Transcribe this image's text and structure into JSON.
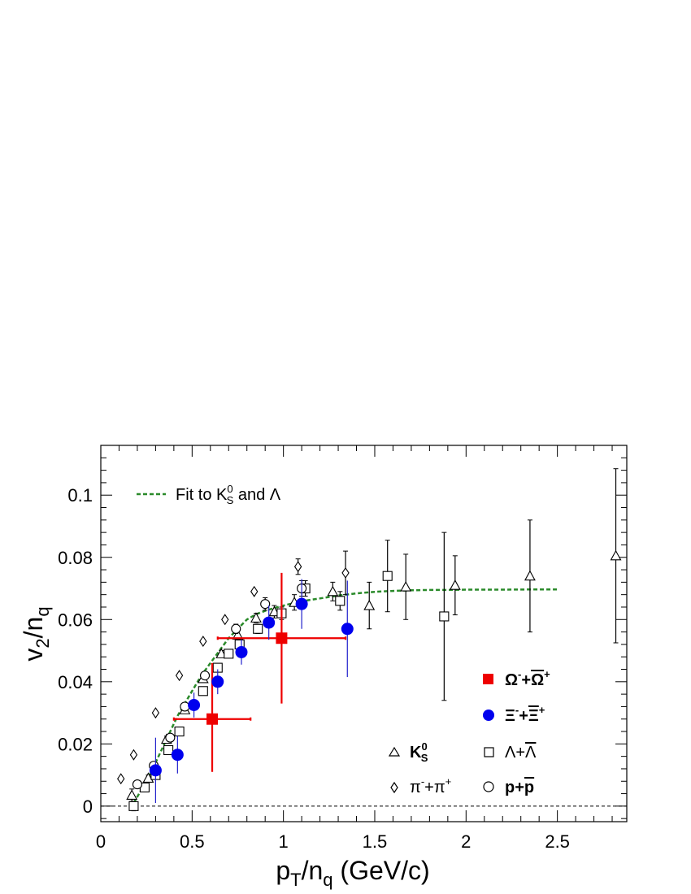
{
  "chart_data": {
    "type": "scatter",
    "xlabel": "p_T/n_q (GeV/c)",
    "ylabel": "v_2/n_q",
    "xlim": [
      0,
      2.88
    ],
    "ylim": [
      -0.005,
      0.116
    ],
    "grid": false,
    "legend_placement": "top-left fit; bottom-right markers",
    "x_ticks": [
      "0",
      "0.5",
      "1",
      "1.5",
      "2",
      "2.5"
    ],
    "y_ticks": [
      "0",
      "0.02",
      "0.04",
      "0.06",
      "0.08",
      "0.1"
    ],
    "zero_line": true,
    "colors": {
      "fit": "#2a8a2a",
      "omega": "#ee0000",
      "xi": "#0000ee",
      "other": "#000000",
      "xi_errors": "#2222cc"
    },
    "fit": {
      "label": "Fit to K_S^0 and Λ",
      "x": [
        0.18,
        0.22,
        0.26,
        0.3,
        0.34,
        0.38,
        0.42,
        0.46,
        0.5,
        0.55,
        0.6,
        0.65,
        0.7,
        0.75,
        0.8,
        0.85,
        0.9,
        0.95,
        1.0,
        1.1,
        1.2,
        1.3,
        1.4,
        1.5,
        1.6,
        1.7,
        1.8,
        1.9,
        2.0,
        2.2,
        2.4,
        2.5
      ],
      "y": [
        0.001,
        0.005,
        0.009,
        0.014,
        0.019,
        0.024,
        0.029,
        0.033,
        0.037,
        0.042,
        0.046,
        0.05,
        0.054,
        0.057,
        0.06,
        0.0617,
        0.0628,
        0.0637,
        0.0645,
        0.0659,
        0.0668,
        0.0677,
        0.0684,
        0.0689,
        0.0692,
        0.0694,
        0.0695,
        0.0695,
        0.0696,
        0.0696,
        0.0697,
        0.0697
      ]
    },
    "series": [
      {
        "name": "Ω⁻+Ω̄⁺",
        "marker": "filled-square",
        "color": "#ee0000",
        "points": [
          {
            "x": 0.61,
            "y": 0.028,
            "xerr": 0.21,
            "yerr_low": 0.017,
            "yerr_high": 0.018
          },
          {
            "x": 0.99,
            "y": 0.054,
            "xerr": 0.35,
            "yerr_low": 0.021,
            "yerr_high": 0.021
          }
        ]
      },
      {
        "name": "Ξ⁻+Ξ̄⁺",
        "marker": "filled-circle",
        "color": "#0000ee",
        "points": [
          {
            "x": 0.3,
            "y": 0.0115,
            "yerr_low": 0.0105,
            "yerr_high": 0.0105
          },
          {
            "x": 0.42,
            "y": 0.0165,
            "yerr_low": 0.006,
            "yerr_high": 0.006
          },
          {
            "x": 0.51,
            "y": 0.0325,
            "yerr_low": 0.004,
            "yerr_high": 0.004
          },
          {
            "x": 0.64,
            "y": 0.04,
            "yerr_low": 0.004,
            "yerr_high": 0.004
          },
          {
            "x": 0.77,
            "y": 0.0495,
            "yerr_low": 0.004,
            "yerr_high": 0.004
          },
          {
            "x": 0.92,
            "y": 0.059,
            "yerr_low": 0.0055,
            "yerr_high": 0.0055
          },
          {
            "x": 1.1,
            "y": 0.065,
            "yerr_low": 0.008,
            "yerr_high": 0.008
          },
          {
            "x": 1.35,
            "y": 0.057,
            "yerr_low": 0.0155,
            "yerr_high": 0.0155
          }
        ]
      },
      {
        "name": "K_S^0",
        "marker": "open-triangle",
        "color": "#000000",
        "points": [
          {
            "x": 0.17,
            "y": 0.0035,
            "yerr_low": 0.002,
            "yerr_high": 0.002
          },
          {
            "x": 0.26,
            "y": 0.009,
            "yerr_low": 0.001,
            "yerr_high": 0.001
          },
          {
            "x": 0.36,
            "y": 0.0215,
            "yerr_low": 0.001,
            "yerr_high": 0.001
          },
          {
            "x": 0.46,
            "y": 0.031,
            "yerr_low": 0.001,
            "yerr_high": 0.001
          },
          {
            "x": 0.56,
            "y": 0.041,
            "yerr_low": 0.001,
            "yerr_high": 0.001
          },
          {
            "x": 0.66,
            "y": 0.049,
            "yerr_low": 0.001,
            "yerr_high": 0.001
          },
          {
            "x": 0.75,
            "y": 0.055,
            "yerr_low": 0.0015,
            "yerr_high": 0.0015
          },
          {
            "x": 0.85,
            "y": 0.0605,
            "yerr_low": 0.0015,
            "yerr_high": 0.0015
          },
          {
            "x": 0.95,
            "y": 0.0625,
            "yerr_low": 0.002,
            "yerr_high": 0.002
          },
          {
            "x": 1.06,
            "y": 0.0655,
            "yerr_low": 0.0025,
            "yerr_high": 0.0025
          },
          {
            "x": 1.27,
            "y": 0.069,
            "yerr_low": 0.003,
            "yerr_high": 0.003
          },
          {
            "x": 1.47,
            "y": 0.0645,
            "yerr_low": 0.0075,
            "yerr_high": 0.0075
          },
          {
            "x": 1.67,
            "y": 0.0705,
            "yerr_low": 0.0105,
            "yerr_high": 0.0105
          },
          {
            "x": 1.94,
            "y": 0.071,
            "yerr_low": 0.0095,
            "yerr_high": 0.0095
          },
          {
            "x": 2.35,
            "y": 0.074,
            "yerr_low": 0.018,
            "yerr_high": 0.018
          },
          {
            "x": 2.82,
            "y": 0.0805,
            "yerr_low": 0.028,
            "yerr_high": 0.028
          }
        ]
      },
      {
        "name": "Λ+Λ̄",
        "marker": "open-square",
        "color": "#000000",
        "points": [
          {
            "x": 0.18,
            "y": 0.0,
            "yerr_low": 0.0015,
            "yerr_high": 0.0015
          },
          {
            "x": 0.24,
            "y": 0.006,
            "yerr_low": 0.001,
            "yerr_high": 0.001
          },
          {
            "x": 0.3,
            "y": 0.01,
            "yerr_low": 0.001,
            "yerr_high": 0.001
          },
          {
            "x": 0.37,
            "y": 0.018,
            "yerr_low": 0.001,
            "yerr_high": 0.001
          },
          {
            "x": 0.43,
            "y": 0.024,
            "yerr_low": 0.001,
            "yerr_high": 0.001
          },
          {
            "x": 0.56,
            "y": 0.037,
            "yerr_low": 0.001,
            "yerr_high": 0.001
          },
          {
            "x": 0.64,
            "y": 0.0445,
            "yerr_low": 0.001,
            "yerr_high": 0.001
          },
          {
            "x": 0.7,
            "y": 0.049,
            "yerr_low": 0.001,
            "yerr_high": 0.001
          },
          {
            "x": 0.76,
            "y": 0.052,
            "yerr_low": 0.0015,
            "yerr_high": 0.0015
          },
          {
            "x": 0.86,
            "y": 0.057,
            "yerr_low": 0.0015,
            "yerr_high": 0.0015
          },
          {
            "x": 0.99,
            "y": 0.062,
            "yerr_low": 0.002,
            "yerr_high": 0.002
          },
          {
            "x": 1.12,
            "y": 0.07,
            "yerr_low": 0.0025,
            "yerr_high": 0.0025
          },
          {
            "x": 1.31,
            "y": 0.066,
            "yerr_low": 0.003,
            "yerr_high": 0.003
          },
          {
            "x": 1.57,
            "y": 0.074,
            "yerr_low": 0.0115,
            "yerr_high": 0.0115
          },
          {
            "x": 1.88,
            "y": 0.061,
            "yerr_low": 0.027,
            "yerr_high": 0.027
          }
        ]
      },
      {
        "name": "π⁻+π⁺",
        "marker": "open-diamond",
        "color": "#000000",
        "points": [
          {
            "x": 0.11,
            "y": 0.0088
          },
          {
            "x": 0.18,
            "y": 0.0165
          },
          {
            "x": 0.3,
            "y": 0.03
          },
          {
            "x": 0.43,
            "y": 0.042
          },
          {
            "x": 0.56,
            "y": 0.053
          },
          {
            "x": 0.68,
            "y": 0.06
          },
          {
            "x": 0.84,
            "y": 0.069
          },
          {
            "x": 1.08,
            "y": 0.077,
            "yerr_low": 0.0025,
            "yerr_high": 0.0025
          },
          {
            "x": 1.34,
            "y": 0.075,
            "yerr_low": 0.007,
            "yerr_high": 0.007
          }
        ]
      },
      {
        "name": "p+p̄",
        "marker": "open-circle",
        "color": "#000000",
        "points": [
          {
            "x": 0.2,
            "y": 0.007,
            "yerr_low": 0.001,
            "yerr_high": 0.001
          },
          {
            "x": 0.29,
            "y": 0.013,
            "yerr_low": 0.001,
            "yerr_high": 0.001
          },
          {
            "x": 0.38,
            "y": 0.022,
            "yerr_low": 0.001,
            "yerr_high": 0.001
          },
          {
            "x": 0.46,
            "y": 0.032,
            "yerr_low": 0.001,
            "yerr_high": 0.001
          },
          {
            "x": 0.57,
            "y": 0.042,
            "yerr_low": 0.001,
            "yerr_high": 0.001
          },
          {
            "x": 0.74,
            "y": 0.057,
            "yerr_low": 0.0015,
            "yerr_high": 0.0015
          },
          {
            "x": 0.9,
            "y": 0.065,
            "yerr_low": 0.002,
            "yerr_high": 0.002
          },
          {
            "x": 1.1,
            "y": 0.07,
            "yerr_low": 0.0025,
            "yerr_high": 0.0025
          }
        ]
      }
    ]
  },
  "legend": {
    "fit_prefix": "Fit to K",
    "fit_sup": "0",
    "fit_sub": "S",
    "fit_suffix": " and Λ",
    "omega_main": "Ω",
    "omega_sup1": "-",
    "omega_plus": "+",
    "omega_bar": "Ω",
    "omega_sup2": "+",
    "xi_main": "Ξ",
    "xi_sup1": "-",
    "xi_plus": "+",
    "xi_bar": "Ξ",
    "xi_sup2": "+",
    "k0_main": "K",
    "k0_sup": "0",
    "k0_sub": "S",
    "lambda_main": "Λ+",
    "lambda_bar": "Λ",
    "pion_pi1": "π",
    "pion_sup1": "-",
    "pion_plus": "+π",
    "pion_sup2": "+",
    "proton_main": "p+",
    "proton_bar": "p"
  },
  "axis_label_parts": {
    "y_main": "v",
    "y_sub1": "2",
    "y_slash": "/n",
    "y_sub2": "q",
    "x_main": "p",
    "x_sub1": "T",
    "x_slash": "/n",
    "x_sub2": "q",
    "x_units": " (GeV/c)"
  }
}
